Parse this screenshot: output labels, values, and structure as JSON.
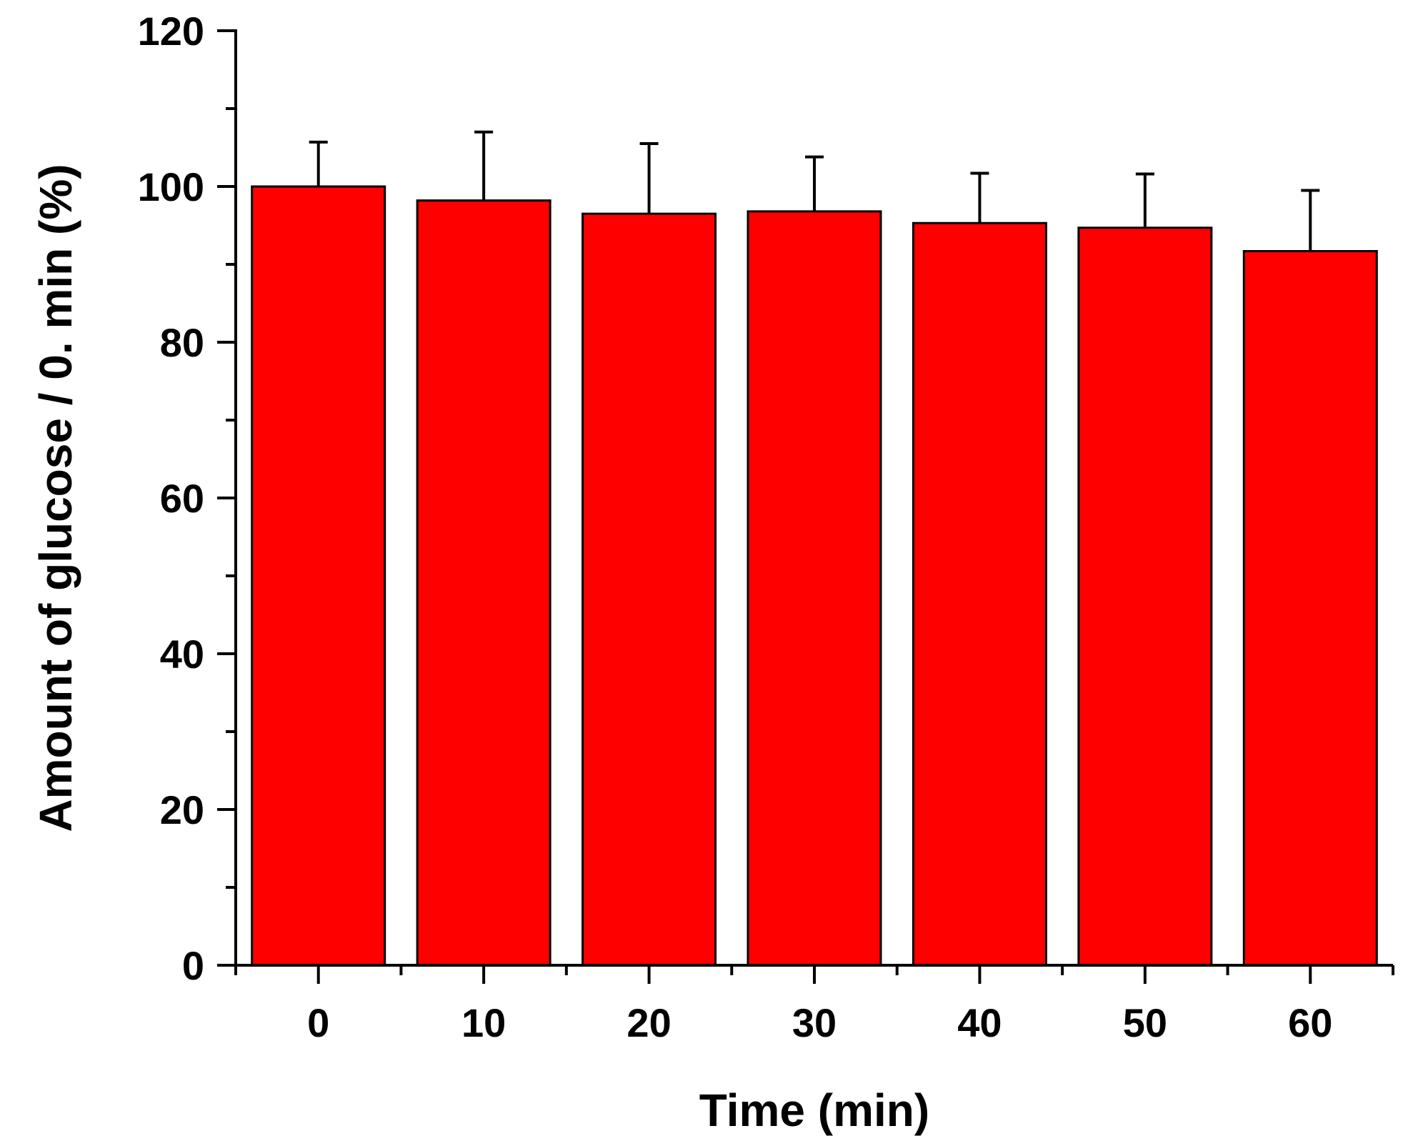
{
  "chart_data": {
    "type": "bar",
    "title": "",
    "xlabel": "Time (min)",
    "ylabel": "Amount of glucose / 0. min (%)",
    "categories": [
      "0",
      "10",
      "20",
      "30",
      "40",
      "50",
      "60"
    ],
    "values": [
      100,
      98.2,
      96.5,
      96.8,
      95.3,
      94.7,
      91.7
    ],
    "error_upper": [
      5.7,
      8.8,
      9.0,
      7.0,
      6.4,
      6.9,
      7.8
    ],
    "ylim": [
      0,
      120
    ],
    "yticks": [
      "0",
      "20",
      "40",
      "60",
      "80",
      "100",
      "120"
    ],
    "bar_color": "#ff0000",
    "edge_color": "#000000",
    "grid": false,
    "legend": "none"
  }
}
